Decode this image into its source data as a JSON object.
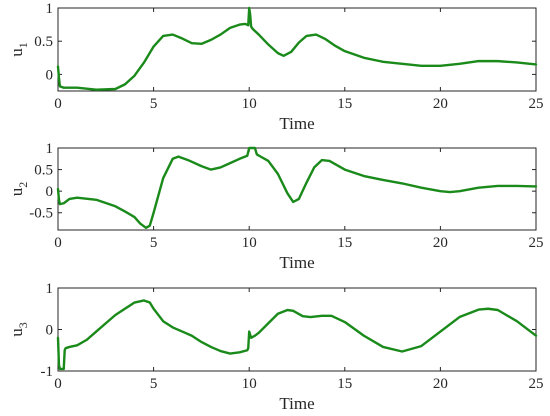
{
  "chart_data": [
    {
      "type": "line",
      "ylabel": "u",
      "ylabel_sub": "1",
      "xlabel": "Time",
      "xlim": [
        0,
        25
      ],
      "ylim": [
        -0.25,
        1.0
      ],
      "xticks": [
        "0",
        "5",
        "10",
        "15",
        "20",
        "25"
      ],
      "yticks": [
        {
          "v": 0,
          "label": "0"
        },
        {
          "v": 0.5,
          "label": "0.5"
        },
        {
          "v": 1,
          "label": "1"
        }
      ],
      "grid": false,
      "color": "#1a8a1a",
      "series": [
        {
          "x": [
            0,
            0.05,
            0.1,
            0.3,
            1,
            2,
            3,
            3.5,
            4,
            4.5,
            5,
            5.5,
            6,
            6.5,
            7,
            7.5,
            8,
            8.5,
            9,
            9.5,
            9.8,
            9.95,
            10.0,
            10.05,
            10.1,
            10.2,
            10.5,
            11,
            11.5,
            11.8,
            12.2,
            12.6,
            13,
            13.5,
            14,
            14.5,
            15,
            16,
            17,
            18,
            19,
            20,
            21,
            22,
            23,
            24,
            25
          ],
          "y": [
            0.12,
            -0.05,
            -0.18,
            -0.2,
            -0.2,
            -0.23,
            -0.22,
            -0.15,
            -0.02,
            0.18,
            0.42,
            0.58,
            0.6,
            0.54,
            0.47,
            0.46,
            0.52,
            0.6,
            0.7,
            0.75,
            0.76,
            0.74,
            1.0,
            0.9,
            0.72,
            0.68,
            0.6,
            0.45,
            0.32,
            0.28,
            0.34,
            0.48,
            0.58,
            0.6,
            0.53,
            0.43,
            0.35,
            0.25,
            0.19,
            0.16,
            0.13,
            0.13,
            0.16,
            0.2,
            0.2,
            0.18,
            0.15
          ]
        }
      ]
    },
    {
      "type": "line",
      "ylabel": "u",
      "ylabel_sub": "2",
      "xlabel": "Time",
      "xlim": [
        0,
        25
      ],
      "ylim": [
        -0.9,
        1.0
      ],
      "xticks": [
        "0",
        "5",
        "10",
        "15",
        "20",
        "25"
      ],
      "yticks": [
        {
          "v": -0.5,
          "label": "-0.5"
        },
        {
          "v": 0,
          "label": "0"
        },
        {
          "v": 0.5,
          "label": "0.5"
        },
        {
          "v": 1,
          "label": "1"
        }
      ],
      "grid": false,
      "color": "#1a8a1a",
      "series": [
        {
          "x": [
            0,
            0.05,
            0.1,
            0.3,
            0.6,
            1,
            2,
            3,
            3.5,
            4,
            4.3,
            4.6,
            4.8,
            5,
            5.5,
            6,
            6.3,
            6.8,
            7.5,
            8,
            8.5,
            9,
            9.5,
            9.9,
            10.0,
            10.3,
            10.4,
            10.6,
            11,
            11.5,
            12,
            12.3,
            12.6,
            13,
            13.4,
            13.8,
            14.2,
            15,
            16,
            17,
            18,
            19,
            20,
            20.5,
            21,
            22,
            23,
            24,
            25
          ],
          "y": [
            0.05,
            -0.2,
            -0.3,
            -0.28,
            -0.18,
            -0.15,
            -0.2,
            -0.35,
            -0.47,
            -0.6,
            -0.75,
            -0.85,
            -0.8,
            -0.5,
            0.3,
            0.75,
            0.8,
            0.72,
            0.58,
            0.5,
            0.55,
            0.65,
            0.75,
            0.82,
            1.0,
            1.0,
            0.85,
            0.8,
            0.7,
            0.4,
            -0.05,
            -0.25,
            -0.18,
            0.2,
            0.55,
            0.72,
            0.7,
            0.5,
            0.35,
            0.26,
            0.18,
            0.08,
            0.0,
            -0.02,
            0.0,
            0.08,
            0.12,
            0.12,
            0.11
          ]
        }
      ]
    },
    {
      "type": "line",
      "ylabel": "u",
      "ylabel_sub": "3",
      "xlabel": "Time",
      "xlim": [
        0,
        25
      ],
      "ylim": [
        -1.0,
        1.0
      ],
      "xticks": [
        "0",
        "5",
        "10",
        "15",
        "20",
        "25"
      ],
      "yticks": [
        {
          "v": -1,
          "label": "-1"
        },
        {
          "v": 0,
          "label": "0"
        },
        {
          "v": 1,
          "label": "1"
        }
      ],
      "grid": false,
      "color": "#1a8a1a",
      "series": [
        {
          "x": [
            0,
            0.05,
            0.1,
            0.3,
            0.35,
            0.4,
            0.6,
            1,
            1.5,
            2,
            2.5,
            3,
            3.5,
            4,
            4.5,
            4.8,
            5,
            5.5,
            6,
            6.5,
            7,
            7.5,
            8,
            8.5,
            9,
            9.5,
            9.9,
            9.95,
            10.0,
            10.1,
            10.3,
            10.5,
            11,
            11.5,
            12,
            12.3,
            12.8,
            13.2,
            13.8,
            14.3,
            15,
            16,
            17,
            18,
            19,
            20,
            21,
            22,
            22.5,
            23,
            24,
            25
          ],
          "y": [
            -0.2,
            -0.85,
            -0.95,
            -0.95,
            -0.5,
            -0.45,
            -0.42,
            -0.38,
            -0.25,
            -0.05,
            0.15,
            0.35,
            0.5,
            0.65,
            0.7,
            0.65,
            0.5,
            0.2,
            0.05,
            -0.05,
            -0.15,
            -0.3,
            -0.42,
            -0.52,
            -0.58,
            -0.55,
            -0.5,
            -0.45,
            -0.05,
            -0.2,
            -0.15,
            -0.08,
            0.15,
            0.38,
            0.47,
            0.45,
            0.32,
            0.3,
            0.33,
            0.33,
            0.18,
            -0.15,
            -0.42,
            -0.53,
            -0.4,
            -0.05,
            0.3,
            0.48,
            0.5,
            0.47,
            0.2,
            -0.15
          ]
        }
      ]
    }
  ]
}
